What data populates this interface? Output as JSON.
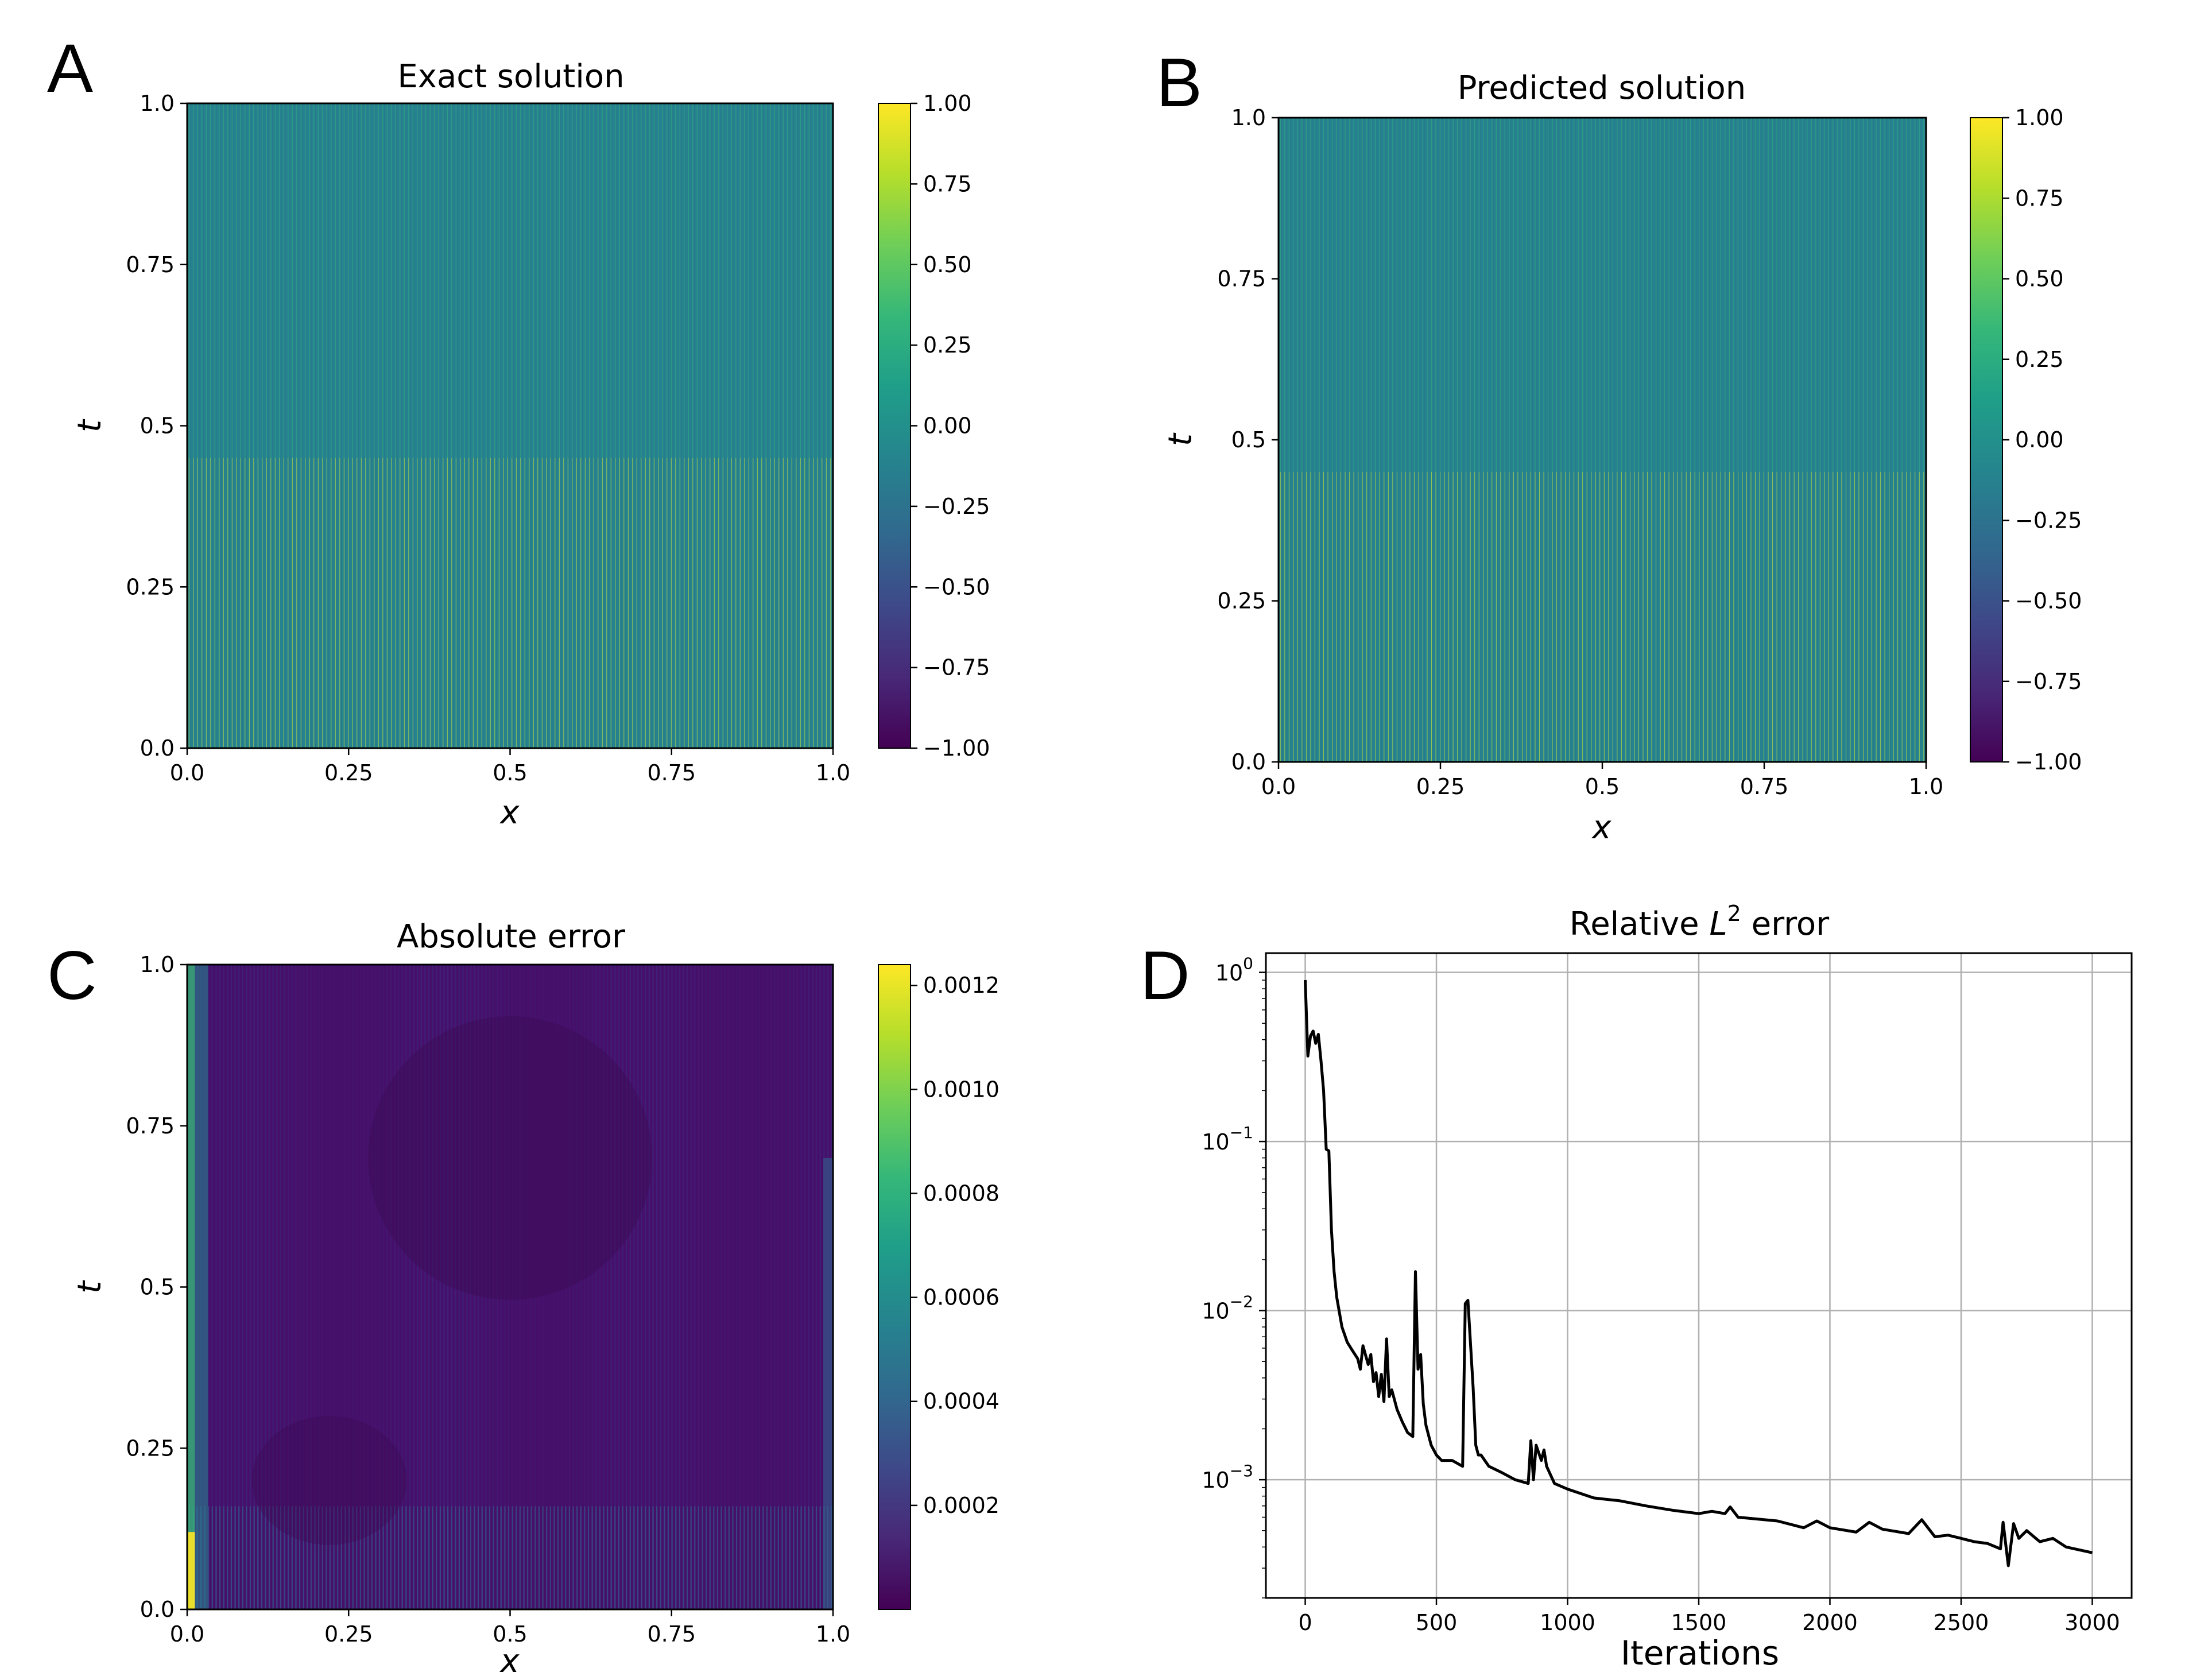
{
  "figure": {
    "panel_letters": [
      "A",
      "B",
      "C",
      "D"
    ]
  },
  "colors": {
    "viridis": [
      "#440154",
      "#482878",
      "#3e4989",
      "#31688e",
      "#26828e",
      "#1f9e89",
      "#35b779",
      "#6ece58",
      "#b5de2b",
      "#fde725"
    ],
    "line": "#000000",
    "grid": "#b0b0b0",
    "background": "#ffffff"
  },
  "chart_data": [
    {
      "panel": "A",
      "type": "heatmap",
      "title": "Exact solution",
      "xlabel": "x",
      "ylabel": "t",
      "xlim": [
        0,
        1
      ],
      "ylim": [
        0,
        1
      ],
      "x_ticks": [
        "0.0",
        "0.25",
        "0.5",
        "0.75",
        "1.0"
      ],
      "y_ticks": [
        "0.0",
        "0.25",
        "0.5",
        "0.75",
        "1.0"
      ],
      "colorbar": {
        "range": [
          -1.0,
          1.0
        ],
        "ticks": [
          "1.00",
          "0.75",
          "0.50",
          "0.25",
          "0.00",
          "−0.25",
          "−0.50",
          "−0.75",
          "−1.00"
        ]
      },
      "pattern": "dense vertical stripes, near 0 with bright thin yellow lines, stronger toward t=0"
    },
    {
      "panel": "B",
      "type": "heatmap",
      "title": "Predicted solution",
      "xlabel": "x",
      "ylabel": "t",
      "xlim": [
        0,
        1
      ],
      "ylim": [
        0,
        1
      ],
      "x_ticks": [
        "0.0",
        "0.25",
        "0.5",
        "0.75",
        "1.0"
      ],
      "y_ticks": [
        "0.0",
        "0.25",
        "0.5",
        "0.75",
        "1.0"
      ],
      "colorbar": {
        "range": [
          -1.0,
          1.0
        ],
        "ticks": [
          "1.00",
          "0.75",
          "0.50",
          "0.25",
          "0.00",
          "−0.25",
          "−0.50",
          "−0.75",
          "−1.00"
        ]
      },
      "pattern": "dense vertical stripes, near 0 with bright thin yellow lines, stronger toward t=0"
    },
    {
      "panel": "C",
      "type": "heatmap",
      "title": "Absolute error",
      "xlabel": "x",
      "ylabel": "t",
      "xlim": [
        0,
        1
      ],
      "ylim": [
        0,
        1
      ],
      "x_ticks": [
        "0.0",
        "0.25",
        "0.5",
        "0.75",
        "1.0"
      ],
      "y_ticks": [
        "0.0",
        "0.25",
        "0.5",
        "0.75",
        "1.0"
      ],
      "colorbar": {
        "range": [
          0.0,
          0.00124
        ],
        "ticks": [
          "0.0012",
          "0.0010",
          "0.0008",
          "0.0006",
          "0.0004",
          "0.0002"
        ]
      },
      "pattern": "mostly dark purple (<0.0002) with striping; brighter (up to ~0.0012) near x=0, and blue band near t<0.15"
    },
    {
      "panel": "D",
      "type": "line",
      "title": "Relative L2 error",
      "title_prefix": "Relative ",
      "title_symbol": "L",
      "title_exponent": "2",
      "title_suffix": " error",
      "xlabel": "Iterations",
      "ylabel": "",
      "yscale": "log",
      "xlim": [
        -150,
        3150
      ],
      "ylim": [
        0.0002,
        1.3
      ],
      "x_ticks": [
        "0",
        "500",
        "1000",
        "1500",
        "2000",
        "2500",
        "3000"
      ],
      "y_ticks": [
        {
          "base": "10",
          "exp": "0"
        },
        {
          "base": "10",
          "exp": "−1"
        },
        {
          "base": "10",
          "exp": "−2"
        },
        {
          "base": "10",
          "exp": "−3"
        }
      ],
      "grid": true,
      "x": [
        0,
        10,
        20,
        30,
        40,
        50,
        60,
        70,
        80,
        90,
        100,
        110,
        120,
        140,
        160,
        180,
        200,
        210,
        220,
        240,
        250,
        260,
        270,
        280,
        290,
        300,
        310,
        320,
        330,
        350,
        370,
        390,
        410,
        420,
        430,
        440,
        450,
        460,
        480,
        500,
        520,
        560,
        600,
        610,
        620,
        640,
        650,
        660,
        670,
        700,
        750,
        800,
        850,
        860,
        870,
        880,
        900,
        910,
        920,
        950,
        1000,
        1100,
        1200,
        1300,
        1400,
        1500,
        1550,
        1600,
        1620,
        1650,
        1700,
        1800,
        1900,
        1950,
        2000,
        2100,
        2150,
        2200,
        2300,
        2350,
        2400,
        2450,
        2500,
        2550,
        2600,
        2650,
        2660,
        2680,
        2700,
        2720,
        2750,
        2800,
        2850,
        2900,
        3000
      ],
      "y": [
        0.9,
        0.32,
        0.42,
        0.45,
        0.38,
        0.43,
        0.3,
        0.2,
        0.09,
        0.088,
        0.03,
        0.017,
        0.012,
        0.008,
        0.0065,
        0.0058,
        0.0052,
        0.0045,
        0.0062,
        0.0048,
        0.0055,
        0.0038,
        0.0043,
        0.0031,
        0.0042,
        0.0029,
        0.0068,
        0.0031,
        0.0034,
        0.0026,
        0.0022,
        0.0019,
        0.0018,
        0.017,
        0.0045,
        0.0055,
        0.0028,
        0.0021,
        0.0016,
        0.0014,
        0.0013,
        0.0013,
        0.0012,
        0.011,
        0.0115,
        0.0035,
        0.0016,
        0.0014,
        0.0014,
        0.0012,
        0.0011,
        0.001,
        0.00095,
        0.0017,
        0.001,
        0.0016,
        0.0013,
        0.0015,
        0.0012,
        0.00095,
        0.00088,
        0.00078,
        0.00075,
        0.0007,
        0.00066,
        0.00063,
        0.00065,
        0.00063,
        0.00069,
        0.0006,
        0.00059,
        0.00057,
        0.00052,
        0.00057,
        0.00052,
        0.00049,
        0.00056,
        0.00051,
        0.00048,
        0.00058,
        0.00046,
        0.00047,
        0.00045,
        0.00043,
        0.00042,
        0.00039,
        0.00056,
        0.00031,
        0.00055,
        0.00045,
        0.0005,
        0.00043,
        0.00045,
        0.0004,
        0.00037
      ]
    }
  ]
}
